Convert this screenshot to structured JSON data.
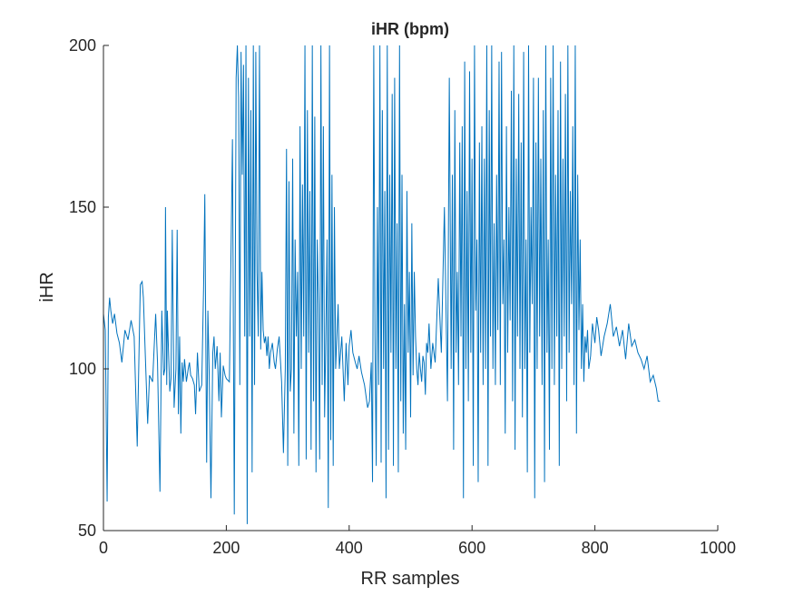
{
  "chart_data": {
    "type": "line",
    "title": "iHR (bpm)",
    "xlabel": "RR samples",
    "ylabel": "iHR",
    "xlim": [
      0,
      1000
    ],
    "ylim": [
      50,
      200
    ],
    "xticks": [
      "0",
      "200",
      "400",
      "600",
      "800",
      "1000"
    ],
    "yticks": [
      "50",
      "100",
      "150",
      "200"
    ],
    "grid": false,
    "line_color": "#0072bd",
    "series": [
      {
        "x": [
          0,
          3,
          6,
          8,
          10,
          12,
          15,
          18,
          22,
          26,
          30,
          35,
          40,
          45,
          50,
          55,
          60,
          63,
          65,
          68,
          72,
          75,
          80,
          85,
          88,
          92,
          95,
          98,
          100,
          101,
          103,
          104,
          106,
          108,
          110,
          112,
          115,
          118,
          120,
          122,
          124,
          126,
          128,
          130,
          132,
          135,
          138,
          140,
          142,
          145,
          148,
          150,
          153,
          156,
          160,
          163,
          165,
          168,
          170,
          172,
          175,
          178,
          180,
          182,
          185,
          188,
          190,
          192,
          195,
          198,
          200,
          205,
          210,
          213,
          216,
          218,
          220,
          222,
          224,
          226,
          228,
          230,
          232,
          234,
          236,
          238,
          240,
          242,
          244,
          246,
          248,
          250,
          252,
          254,
          256,
          258,
          260,
          262,
          264,
          266,
          268,
          270,
          272,
          275,
          278,
          280,
          283,
          286,
          290,
          293,
          296,
          298,
          300,
          302,
          304,
          306,
          308,
          310,
          312,
          314,
          316,
          318,
          320,
          322,
          324,
          326,
          328,
          330,
          332,
          334,
          336,
          338,
          340,
          342,
          344,
          346,
          348,
          350,
          352,
          354,
          356,
          358,
          360,
          362,
          364,
          366,
          368,
          370,
          372,
          374,
          376,
          378,
          380,
          382,
          384,
          386,
          388,
          390,
          392,
          395,
          398,
          400,
          403,
          406,
          410,
          413,
          416,
          420,
          425,
          430,
          433,
          436,
          438,
          440,
          442,
          444,
          446,
          448,
          450,
          452,
          454,
          456,
          458,
          460,
          462,
          464,
          466,
          468,
          470,
          472,
          474,
          476,
          478,
          480,
          482,
          484,
          486,
          488,
          490,
          492,
          494,
          496,
          498,
          500,
          502,
          504,
          506,
          508,
          510,
          512,
          514,
          516,
          518,
          520,
          522,
          524,
          526,
          528,
          530,
          533,
          536,
          540,
          545,
          550,
          555,
          560,
          563,
          566,
          568,
          570,
          572,
          574,
          576,
          578,
          580,
          582,
          584,
          586,
          588,
          590,
          592,
          594,
          596,
          598,
          600,
          602,
          604,
          606,
          608,
          610,
          612,
          614,
          616,
          618,
          620,
          622,
          624,
          626,
          628,
          630,
          632,
          634,
          636,
          638,
          640,
          642,
          644,
          646,
          648,
          650,
          652,
          654,
          656,
          658,
          660,
          662,
          664,
          666,
          668,
          670,
          672,
          674,
          676,
          678,
          680,
          682,
          684,
          686,
          688,
          690,
          692,
          694,
          696,
          698,
          700,
          702,
          704,
          706,
          708,
          710,
          712,
          714,
          716,
          718,
          720,
          722,
          724,
          726,
          728,
          730,
          732,
          734,
          736,
          738,
          740,
          742,
          744,
          746,
          748,
          750,
          752,
          754,
          756,
          758,
          760,
          762,
          764,
          766,
          768,
          770,
          772,
          774,
          776,
          778,
          780,
          782,
          784,
          786,
          788,
          790,
          793,
          796,
          800,
          803,
          806,
          810,
          815,
          820,
          825,
          830,
          835,
          840,
          845,
          850,
          855,
          860,
          865,
          870,
          875,
          880,
          885,
          890,
          895,
          900,
          903,
          906
        ],
        "y": [
          117,
          112,
          59,
          116,
          122,
          118,
          114,
          117,
          111,
          108,
          102,
          112,
          109,
          115,
          110,
          76,
          126,
          127,
          122,
          105,
          83,
          98,
          96,
          117,
          102,
          62,
          118,
          98,
          100,
          150,
          95,
          118,
          105,
          93,
          97,
          143,
          88,
          100,
          143,
          86,
          110,
          80,
          102,
          96,
          103,
          96,
          100,
          102,
          98,
          97,
          95,
          86,
          105,
          93,
          95,
          125,
          154,
          71,
          118,
          100,
          60,
          105,
          110,
          100,
          107,
          90,
          105,
          85,
          101,
          98,
          97,
          96,
          171,
          55,
          190,
          200,
          184,
          95,
          198,
          160,
          194,
          110,
          200,
          52,
          190,
          110,
          180,
          68,
          200,
          95,
          198,
          130,
          110,
          200,
          106,
          130,
          112,
          108,
          110,
          104,
          110,
          100,
          105,
          108,
          102,
          100,
          106,
          110,
          96,
          74,
          100,
          168,
          70,
          158,
          93,
          100,
          165,
          80,
          140,
          110,
          130,
          70,
          175,
          100,
          157,
          110,
          200,
          72,
          180,
          105,
          155,
          75,
          200,
          90,
          178,
          68,
          140,
          120,
          72,
          200,
          95,
          175,
          85,
          110,
          140,
          57,
          200,
          78,
          160,
          70,
          150,
          100,
          110,
          120,
          100,
          105,
          110,
          100,
          90,
          108,
          95,
          107,
          112,
          105,
          102,
          100,
          104,
          99,
          95,
          88,
          90,
          102,
          65,
          200,
          110,
          70,
          150,
          95,
          200,
          71,
          180,
          100,
          155,
          60,
          200,
          75,
          160,
          105,
          185,
          70,
          190,
          100,
          145,
          68,
          200,
          90,
          160,
          80,
          120,
          75,
          155,
          105,
          130,
          85,
          145,
          98,
          130,
          110,
          100,
          95,
          105,
          100,
          96,
          104,
          102,
          92,
          108,
          105,
          114,
          100,
          108,
          102,
          128,
          105,
          150,
          90,
          190,
          100,
          160,
          75,
          180,
          105,
          130,
          95,
          170,
          110,
          175,
          60,
          195,
          100,
          155,
          90,
          192,
          105,
          165,
          70,
          200,
          118,
          140,
          65,
          170,
          105,
          175,
          95,
          165,
          100,
          200,
          70,
          180,
          110,
          200,
          100,
          145,
          95,
          160,
          112,
          195,
          95,
          198,
          120,
          140,
          80,
          175,
          105,
          150,
          115,
          186,
          90,
          200,
          75,
          165,
          110,
          185,
          100,
          170,
          85,
          198,
          100,
          140,
          68,
          200,
          105,
          150,
          120,
          190,
          60,
          170,
          100,
          190,
          110,
          165,
          95,
          180,
          65,
          200,
          105,
          140,
          75,
          190,
          100,
          200,
          95,
          160,
          110,
          180,
          70,
          195,
          100,
          165,
          110,
          185,
          90,
          200,
          105,
          155,
          120,
          175,
          95,
          200,
          80,
          160,
          112,
          140,
          100,
          120,
          96,
          110,
          105,
          112,
          100,
          104,
          114,
          108,
          116,
          112,
          104,
          110,
          114,
          120,
          110,
          113,
          107,
          112,
          103,
          114,
          107,
          109,
          105,
          103,
          100,
          104,
          96,
          98,
          94,
          90,
          90
        ]
      }
    ]
  }
}
